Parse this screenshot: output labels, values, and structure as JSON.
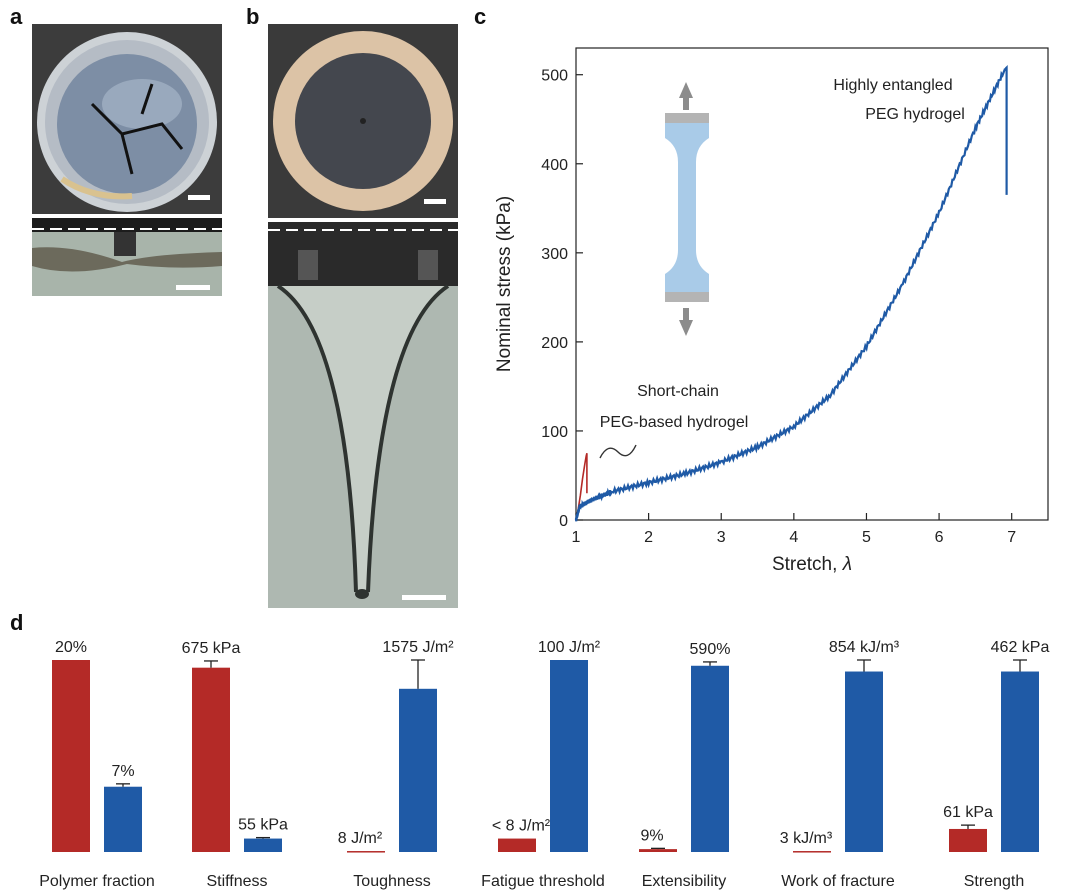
{
  "panels": {
    "a": "a",
    "b": "b",
    "c": "c",
    "d": "d"
  },
  "colors": {
    "red": "#b42a27",
    "blue": "#1f5aa6",
    "axis": "#222222"
  },
  "chart_data": [
    {
      "type": "line",
      "panel": "c",
      "xlabel": "Stretch, ",
      "xlabel_symbol": "λ",
      "ylabel": "Nominal stress (kPa)",
      "xlim": [
        1,
        7.5
      ],
      "ylim": [
        0,
        530
      ],
      "xticks": [
        1,
        2,
        3,
        4,
        5,
        6,
        7
      ],
      "yticks": [
        0,
        100,
        200,
        300,
        400,
        500
      ],
      "annotations": [
        {
          "label_lines": [
            "Highly entangled",
            "PEG hydrogel"
          ],
          "series": "entangled"
        },
        {
          "label_lines": [
            "Short-chain",
            "PEG-based hydrogel"
          ],
          "series": "short"
        }
      ],
      "series": [
        {
          "name": "Short-chain PEG-based hydrogel",
          "color": "#b42a27",
          "x": [
            1.0,
            1.03,
            1.06,
            1.09,
            1.12,
            1.14,
            1.15,
            1.15
          ],
          "y": [
            0,
            12,
            28,
            46,
            62,
            72,
            75,
            30
          ]
        },
        {
          "name": "Highly entangled PEG hydrogel",
          "color": "#1f5aa6",
          "x": [
            1.0,
            1.05,
            1.2,
            1.5,
            2.0,
            2.5,
            3.0,
            3.5,
            4.0,
            4.5,
            5.0,
            5.5,
            6.0,
            6.5,
            6.9,
            6.93,
            6.93
          ],
          "y": [
            0,
            15,
            22,
            32,
            42,
            52,
            65,
            82,
            105,
            140,
            195,
            265,
            345,
            440,
            505,
            508,
            365
          ]
        }
      ]
    },
    {
      "type": "bar",
      "panel": "d",
      "groups": [
        {
          "category": "Polymer fraction",
          "red": {
            "value": 100,
            "label": "20%",
            "error": 0
          },
          "blue": {
            "value": 34,
            "label": "7%",
            "error": 1.5
          }
        },
        {
          "category": "Stiffness",
          "red": {
            "value": 96,
            "label": "675 kPa",
            "error": 3.5
          },
          "blue": {
            "value": 7,
            "label": "55 kPa",
            "error": 0.5
          }
        },
        {
          "category": "Toughness",
          "red": {
            "value": 0.5,
            "label": "8 J/m²",
            "error": 0
          },
          "blue": {
            "value": 85,
            "label": "1575 J/m²",
            "error": 15
          }
        },
        {
          "category": "Fatigue threshold",
          "red": {
            "value": 7,
            "label": "< 8 J/m²",
            "error": 0
          },
          "blue": {
            "value": 100,
            "label": "100 J/m²",
            "error": 0
          }
        },
        {
          "category": "Extensibility",
          "red": {
            "value": 1.5,
            "label": "9%",
            "error": 0.4
          },
          "blue": {
            "value": 97,
            "label": "590%",
            "error": 2
          }
        },
        {
          "category": "Work of fracture",
          "red": {
            "value": 0.5,
            "label": "3 kJ/m³",
            "error": 0
          },
          "blue": {
            "value": 94,
            "label": "854 kJ/m³",
            "error": 6
          }
        },
        {
          "category": "Strength",
          "red": {
            "value": 12,
            "label": "61 kPa",
            "error": 2
          },
          "blue": {
            "value": 94,
            "label": "462 kPa",
            "error": 6
          }
        }
      ]
    }
  ]
}
